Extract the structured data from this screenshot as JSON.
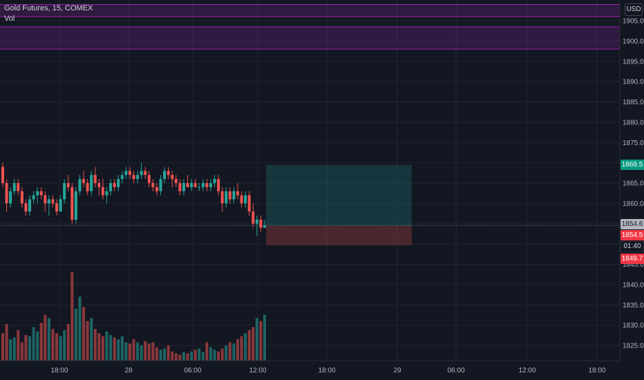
{
  "header": {
    "symbol_title": "Gold Futures, 15, COMEX",
    "volume_label": "Vol",
    "currency": "USD"
  },
  "price_tags": {
    "target": "1869.5",
    "last": "1854.6",
    "entry": "1854.5",
    "countdown": "01:40",
    "stop": "1849.7"
  },
  "colors": {
    "background": "#131722",
    "up": "#26a69a",
    "down": "#ef5350",
    "zone": "#9c27b0",
    "target_tag": "#089981",
    "stop_tag": "#f23645"
  },
  "chart_data": {
    "type": "candlestick",
    "y_ticks": [
      1825.0,
      1830.0,
      1835.0,
      1840.0,
      1845.0,
      1850.0,
      1855.0,
      1860.0,
      1865.0,
      1870.0,
      1875.0,
      1880.0,
      1885.0,
      1890.0,
      1895.0,
      1900.0,
      1905.0
    ],
    "ylim": [
      1822.0,
      1908.0
    ],
    "x_ticks": [
      "18:00",
      "28",
      "06:00",
      "12:00",
      "18:00",
      "29",
      "06:00",
      "12:00",
      "18:00"
    ],
    "grid": true,
    "resistance_zones": [
      {
        "low": 1906.0,
        "high": 1909.0
      },
      {
        "low": 1898.0,
        "high": 1903.5
      }
    ],
    "long_position": {
      "entry": 1854.5,
      "target": 1869.5,
      "stop": 1849.7
    },
    "last_price": 1854.6,
    "candles_ohlc": [
      [
        1869,
        1870,
        1864,
        1865
      ],
      [
        1865,
        1866,
        1858,
        1860
      ],
      [
        1860,
        1864,
        1859,
        1863
      ],
      [
        1863,
        1866,
        1862,
        1865
      ],
      [
        1865,
        1866,
        1862,
        1863
      ],
      [
        1863,
        1864,
        1859,
        1860
      ],
      [
        1860,
        1861,
        1857,
        1858
      ],
      [
        1858,
        1862,
        1857,
        1861
      ],
      [
        1861,
        1863,
        1860,
        1862
      ],
      [
        1862,
        1864,
        1860,
        1863
      ],
      [
        1863,
        1864,
        1861,
        1862
      ],
      [
        1862,
        1863,
        1858,
        1860
      ],
      [
        1860,
        1862,
        1857,
        1861
      ],
      [
        1861,
        1862,
        1859,
        1860
      ],
      [
        1860,
        1861,
        1857,
        1858
      ],
      [
        1858,
        1862,
        1858,
        1861
      ],
      [
        1861,
        1866,
        1860,
        1865
      ],
      [
        1865,
        1867,
        1863,
        1864
      ],
      [
        1864,
        1865,
        1855,
        1856
      ],
      [
        1856,
        1864,
        1855,
        1863
      ],
      [
        1863,
        1867,
        1862,
        1866
      ],
      [
        1866,
        1868,
        1864,
        1865
      ],
      [
        1865,
        1866,
        1862,
        1863
      ],
      [
        1863,
        1868,
        1862,
        1867
      ],
      [
        1867,
        1869,
        1864,
        1865
      ],
      [
        1865,
        1866,
        1862,
        1864
      ],
      [
        1864,
        1866,
        1861,
        1862
      ],
      [
        1862,
        1864,
        1860,
        1863
      ],
      [
        1863,
        1866,
        1862,
        1865
      ],
      [
        1865,
        1866,
        1863,
        1864
      ],
      [
        1864,
        1867,
        1863,
        1866
      ],
      [
        1866,
        1868,
        1865,
        1867
      ],
      [
        1867,
        1869,
        1866,
        1868
      ],
      [
        1868,
        1869,
        1866,
        1867
      ],
      [
        1867,
        1868,
        1865,
        1866
      ],
      [
        1866,
        1868,
        1865,
        1867
      ],
      [
        1867,
        1870,
        1866,
        1868
      ],
      [
        1868,
        1869,
        1866,
        1867
      ],
      [
        1867,
        1868,
        1864,
        1865
      ],
      [
        1865,
        1866,
        1863,
        1864
      ],
      [
        1864,
        1865,
        1862,
        1863
      ],
      [
        1863,
        1867,
        1862,
        1866
      ],
      [
        1866,
        1869,
        1865,
        1868
      ],
      [
        1868,
        1869,
        1866,
        1867
      ],
      [
        1867,
        1868,
        1864,
        1866
      ],
      [
        1866,
        1867,
        1864,
        1865
      ],
      [
        1865,
        1866,
        1862,
        1863
      ],
      [
        1863,
        1866,
        1862,
        1865
      ],
      [
        1865,
        1867,
        1864,
        1864
      ],
      [
        1864,
        1866,
        1863,
        1865
      ],
      [
        1865,
        1866,
        1864,
        1864
      ],
      [
        1864,
        1865,
        1863,
        1864
      ],
      [
        1864,
        1866,
        1863,
        1865
      ],
      [
        1865,
        1866,
        1863,
        1864
      ],
      [
        1864,
        1866,
        1863,
        1865
      ],
      [
        1865,
        1867,
        1864,
        1866
      ],
      [
        1866,
        1867,
        1862,
        1863
      ],
      [
        1863,
        1864,
        1858,
        1860
      ],
      [
        1860,
        1864,
        1859,
        1863
      ],
      [
        1863,
        1864,
        1860,
        1861
      ],
      [
        1861,
        1864,
        1860,
        1863
      ],
      [
        1863,
        1865,
        1861,
        1862
      ],
      [
        1862,
        1863,
        1859,
        1860
      ],
      [
        1860,
        1863,
        1859,
        1862
      ],
      [
        1862,
        1863,
        1857,
        1858
      ],
      [
        1858,
        1860,
        1854,
        1855
      ],
      [
        1855,
        1857,
        1852,
        1856
      ],
      [
        1856,
        1857,
        1853,
        1854
      ],
      [
        1854,
        1856,
        1854,
        1854.6
      ]
    ],
    "volumes": [
      45,
      60,
      35,
      38,
      50,
      30,
      42,
      40,
      55,
      48,
      62,
      75,
      70,
      52,
      45,
      40,
      50,
      60,
      145,
      85,
      105,
      88,
      65,
      70,
      52,
      45,
      40,
      48,
      42,
      38,
      35,
      40,
      30,
      28,
      35,
      30,
      25,
      32,
      28,
      30,
      22,
      18,
      20,
      25,
      15,
      12,
      10,
      14,
      12,
      15,
      18,
      20,
      14,
      30,
      22,
      18,
      15,
      20,
      25,
      30,
      28,
      35,
      40,
      45,
      50,
      55,
      70,
      65,
      75
    ]
  }
}
